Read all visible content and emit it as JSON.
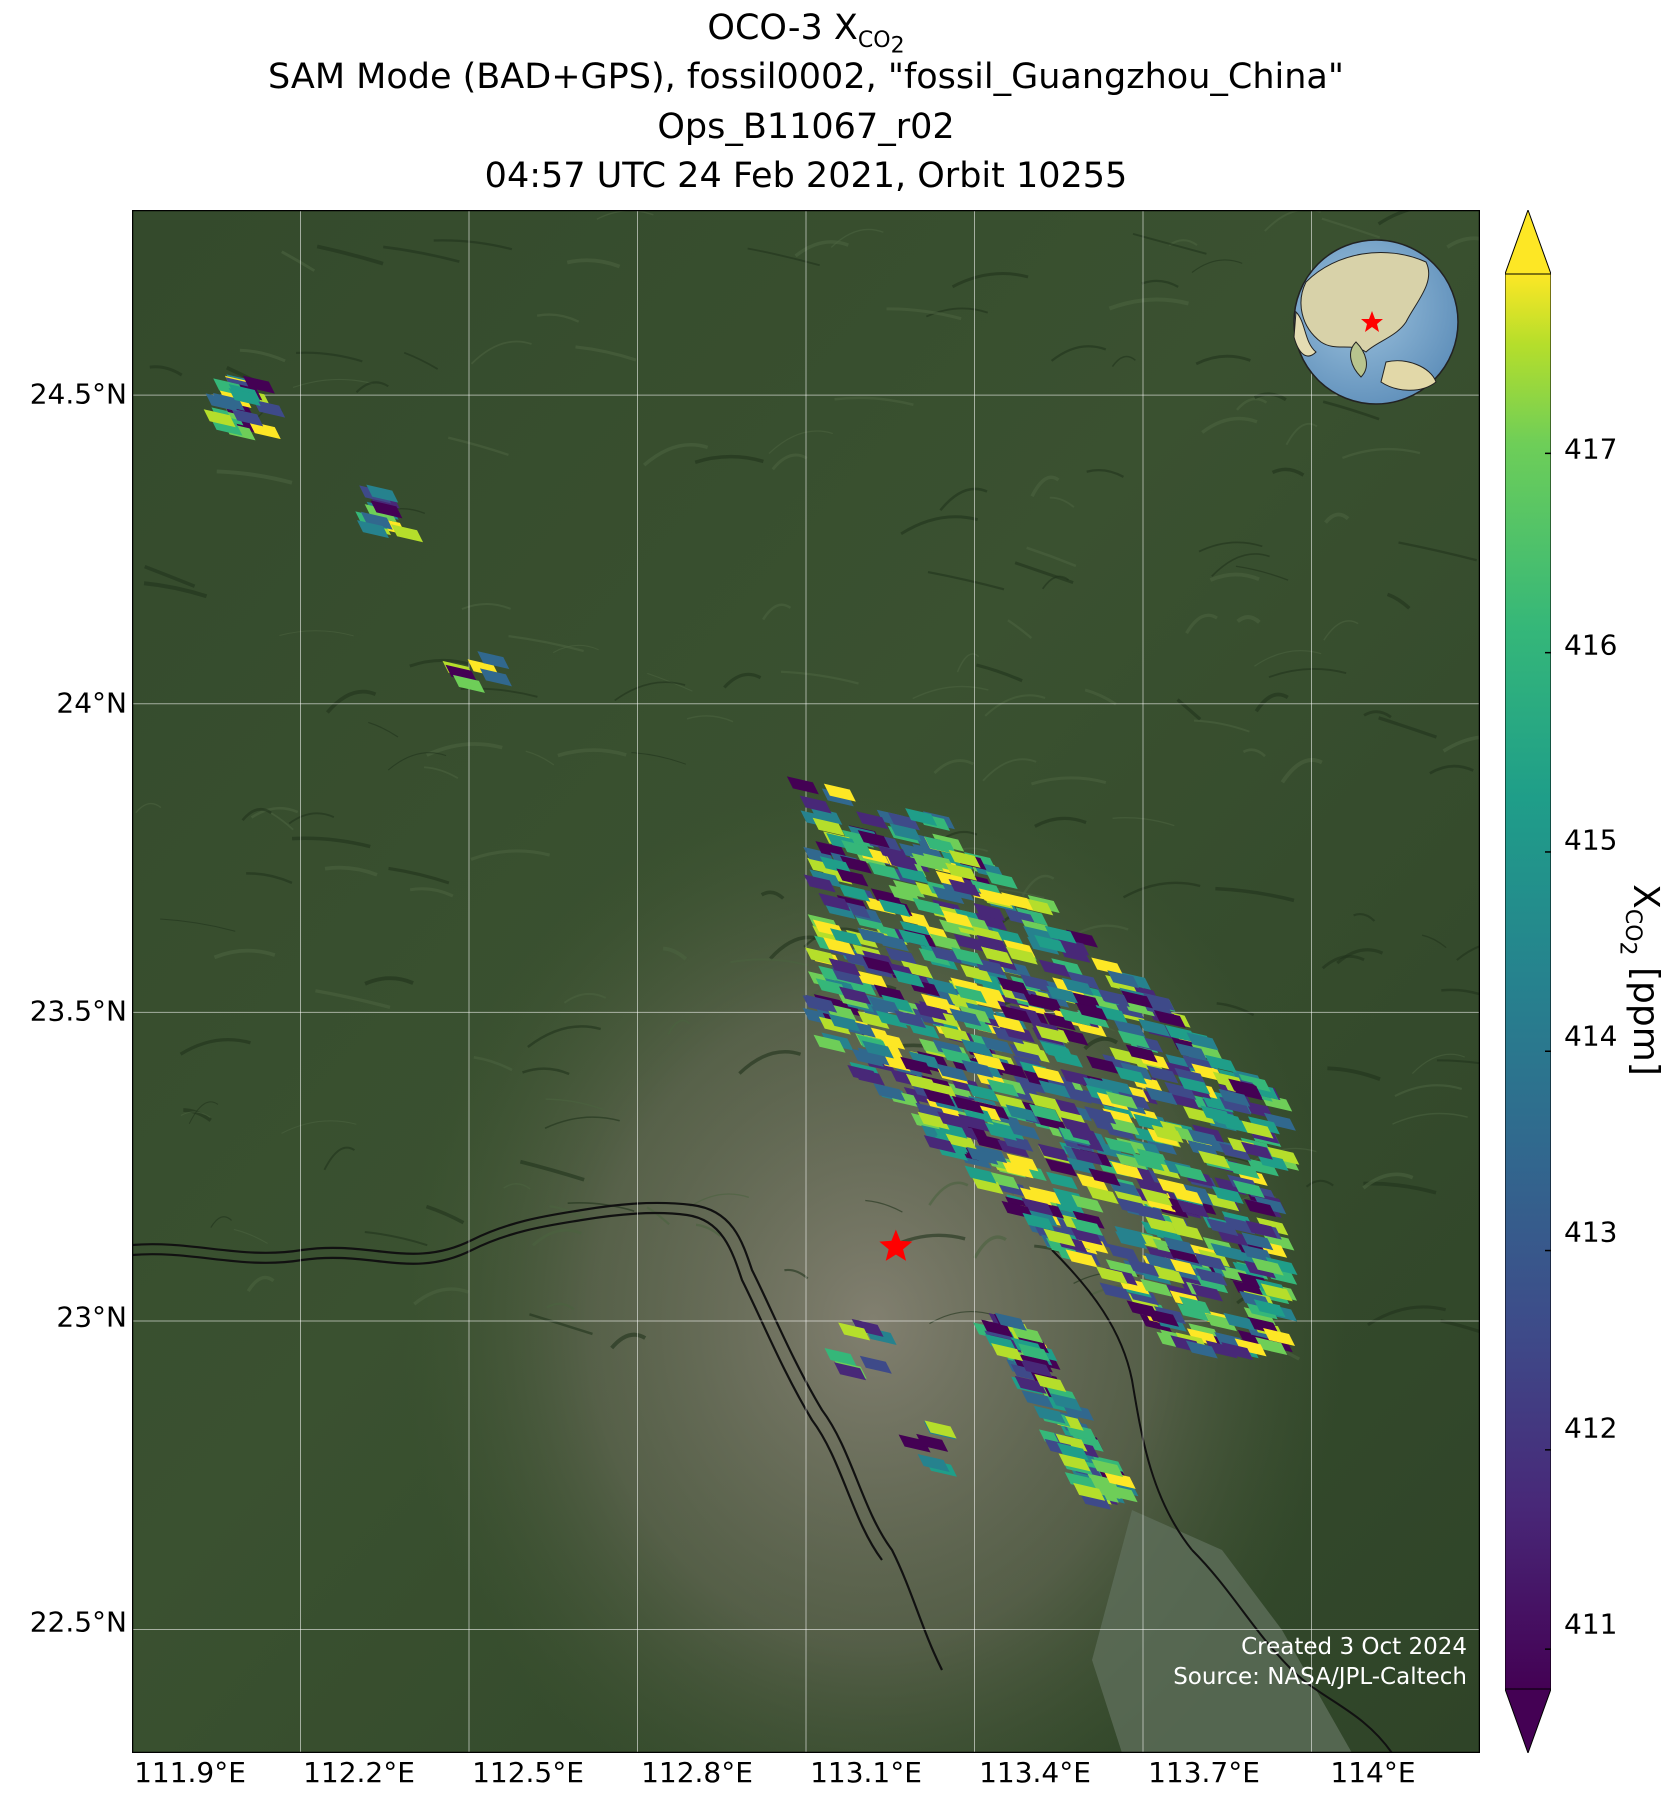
{
  "title": {
    "line1_prefix": "OCO-3 X",
    "line1_sub": "CO",
    "line1_subsub": "2",
    "line2": "SAM Mode (BAD+GPS), fossil0002, \"fossil_Guangzhou_China\"",
    "line3": "Ops_B11067_r02",
    "line4": "04:57 UTC 24 Feb 2021, Orbit 10255"
  },
  "axes": {
    "lat_ticks": [
      "24.5°N",
      "24°N",
      "23.5°N",
      "23°N",
      "22.5°N"
    ],
    "lon_ticks": [
      "111.9°E",
      "112.2°E",
      "112.5°E",
      "112.8°E",
      "113.1°E",
      "113.4°E",
      "113.7°E",
      "114°E"
    ],
    "lat_values": [
      24.5,
      24.0,
      23.5,
      23.0,
      22.5
    ],
    "lon_values": [
      111.9,
      112.2,
      112.5,
      112.8,
      113.1,
      113.4,
      113.7,
      114.0
    ],
    "lon_range": [
      111.9,
      114.3
    ],
    "lat_range": [
      22.3,
      24.8
    ]
  },
  "colorbar": {
    "title_prefix": "X",
    "title_sub": "CO",
    "title_subsub": "2",
    "title_suffix": " [ppm]",
    "ticks": [
      "417",
      "416",
      "415",
      "414",
      "413",
      "412",
      "411"
    ],
    "tick_values": [
      417,
      416,
      415,
      414,
      413,
      412,
      411
    ],
    "range": [
      410.8,
      417.9
    ],
    "colormap": "viridis",
    "extend": "both"
  },
  "target": {
    "lon": 113.26,
    "lat": 23.12,
    "color": "#ff0000"
  },
  "credits": {
    "created": "Created 3 Oct 2024",
    "source": "Source: NASA/JPL-Caltech"
  }
}
